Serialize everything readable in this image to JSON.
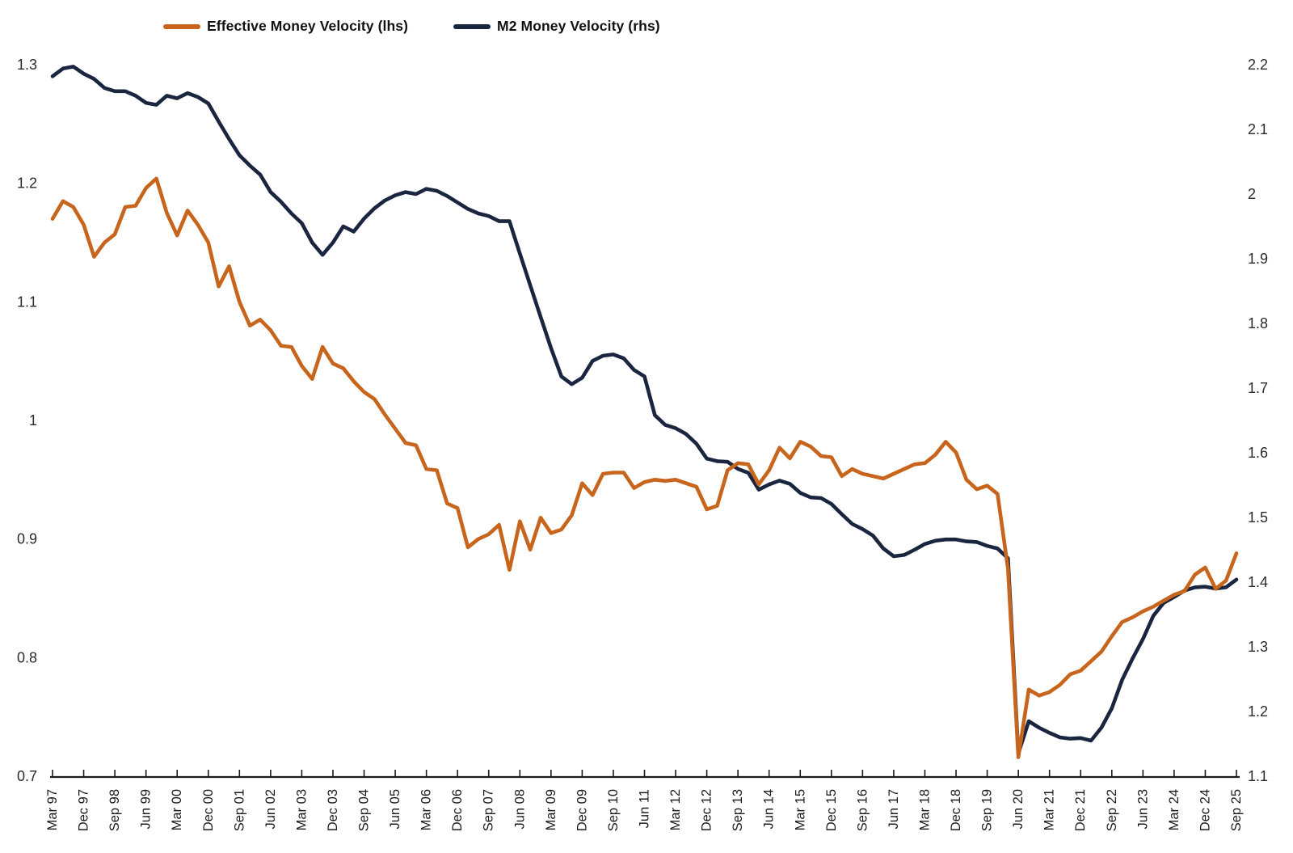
{
  "page": {
    "background": "#ffffff"
  },
  "legend": {
    "items": [
      {
        "label": "Effective Money Velocity (lhs)",
        "color": "#C7651D"
      },
      {
        "label": "M2 Money Velocity (rhs)",
        "color": "#1A2540"
      }
    ]
  },
  "chart_data": {
    "type": "line",
    "title": "",
    "grid": "off",
    "legend_position": "top",
    "frequency": "quarterly",
    "quarters": [
      "Mar 97",
      "Jun 97",
      "Sep 97",
      "Dec 97",
      "Mar 98",
      "Jun 98",
      "Sep 98",
      "Dec 98",
      "Mar 99",
      "Jun 99",
      "Sep 99",
      "Dec 99",
      "Mar 00",
      "Jun 00",
      "Sep 00",
      "Dec 00",
      "Mar 01",
      "Jun 01",
      "Sep 01",
      "Dec 01",
      "Mar 02",
      "Jun 02",
      "Sep 02",
      "Dec 02",
      "Mar 03",
      "Jun 03",
      "Sep 03",
      "Dec 03",
      "Mar 04",
      "Jun 04",
      "Sep 04",
      "Dec 04",
      "Mar 05",
      "Jun 05",
      "Sep 05",
      "Dec 05",
      "Mar 06",
      "Jun 06",
      "Sep 06",
      "Dec 06",
      "Mar 07",
      "Jun 07",
      "Sep 07",
      "Dec 07",
      "Mar 08",
      "Jun 08",
      "Sep 08",
      "Dec 08",
      "Mar 09",
      "Jun 09",
      "Sep 09",
      "Dec 09",
      "Mar 10",
      "Jun 10",
      "Sep 10",
      "Dec 10",
      "Mar 11",
      "Jun 11",
      "Sep 11",
      "Dec 11",
      "Mar 12",
      "Jun 12",
      "Sep 12",
      "Dec 12",
      "Mar 13",
      "Jun 13",
      "Sep 13",
      "Dec 13",
      "Mar 14",
      "Jun 14",
      "Sep 14",
      "Dec 14",
      "Mar 15",
      "Jun 15",
      "Sep 15",
      "Dec 15",
      "Mar 16",
      "Jun 16",
      "Sep 16",
      "Dec 16",
      "Mar 17",
      "Jun 17",
      "Sep 17",
      "Dec 17",
      "Mar 18",
      "Jun 18",
      "Sep 18",
      "Dec 18",
      "Mar 19",
      "Jun 19",
      "Sep 19",
      "Dec 19",
      "Mar 20",
      "Jun 20",
      "Sep 20",
      "Dec 20",
      "Mar 21",
      "Jun 21",
      "Sep 21",
      "Dec 21",
      "Mar 22",
      "Jun 22",
      "Sep 22",
      "Dec 22",
      "Mar 23",
      "Jun 23",
      "Sep 23",
      "Dec 23",
      "Mar 24",
      "Jun 24",
      "Sep 24",
      "Dec 24",
      "Mar 25",
      "Jun 25",
      "Sep 25"
    ],
    "x_tick_step": 3,
    "x_tick_labels": [
      "Mar 97",
      "Dec 97",
      "Sep 98",
      "Jun 99",
      "Mar 00",
      "Dec 00",
      "Sep 01",
      "Jun 02",
      "Mar 03",
      "Dec 03",
      "Sep 04",
      "Jun 05",
      "Mar 06",
      "Dec 06",
      "Sep 07",
      "Jun 08",
      "Mar 09",
      "Dec 09",
      "Sep 10",
      "Jun 11",
      "Mar 12",
      "Dec 12",
      "Sep 13",
      "Jun 14",
      "Mar 15",
      "Dec 15",
      "Sep 16",
      "Jun 17",
      "Mar 18",
      "Dec 18",
      "Sep 19",
      "Jun 20",
      "Mar 21",
      "Dec 21",
      "Sep 22",
      "Jun 23",
      "Mar 24",
      "Dec 24",
      "Sep 25"
    ],
    "left_axis": {
      "min": 0.7,
      "max": 1.3,
      "ticks": [
        1.3,
        1.2,
        1.1,
        1.0,
        0.9,
        0.8,
        0.7
      ],
      "tick_labels": [
        "1.3",
        "1.2",
        "1.1",
        "1",
        "0.9",
        "0.8",
        "0.7"
      ]
    },
    "right_axis": {
      "min": 1.1,
      "max": 2.2,
      "ticks": [
        2.2,
        2.1,
        2.0,
        1.9,
        1.8,
        1.7,
        1.6,
        1.5,
        1.4,
        1.3,
        1.2,
        1.1
      ],
      "tick_labels": [
        "2.2",
        "2.1",
        "2",
        "1.9",
        "1.8",
        "1.7",
        "1.6",
        "1.5",
        "1.4",
        "1.3",
        "1.2",
        "1.1"
      ]
    },
    "series": [
      {
        "name": "Effective Money Velocity (lhs)",
        "axis": "left",
        "color": "#C7651D",
        "values": [
          1.17,
          1.185,
          1.18,
          1.165,
          1.138,
          1.15,
          1.157,
          1.18,
          1.181,
          1.196,
          1.204,
          1.175,
          1.156,
          1.177,
          1.165,
          1.15,
          1.113,
          1.13,
          1.1,
          1.08,
          1.085,
          1.076,
          1.063,
          1.062,
          1.046,
          1.035,
          1.062,
          1.048,
          1.044,
          1.033,
          1.024,
          1.018,
          1.005,
          0.993,
          0.981,
          0.979,
          0.959,
          0.958,
          0.93,
          0.926,
          0.893,
          0.9,
          0.904,
          0.912,
          0.874,
          0.915,
          0.891,
          0.918,
          0.905,
          0.908,
          0.92,
          0.947,
          0.937,
          0.955,
          0.956,
          0.956,
          0.943,
          0.948,
          0.95,
          0.949,
          0.95,
          0.947,
          0.944,
          0.925,
          0.928,
          0.958,
          0.964,
          0.963,
          0.946,
          0.958,
          0.977,
          0.968,
          0.982,
          0.978,
          0.97,
          0.969,
          0.953,
          0.959,
          0.955,
          0.953,
          0.951,
          0.955,
          0.959,
          0.963,
          0.964,
          0.971,
          0.982,
          0.973,
          0.95,
          0.942,
          0.945,
          0.938,
          0.875,
          0.716,
          0.773,
          0.768,
          0.771,
          0.777,
          0.786,
          0.789,
          0.797,
          0.805,
          0.818,
          0.83,
          0.834,
          0.839,
          0.843,
          0.848,
          0.853,
          0.856,
          0.87,
          0.876,
          0.858,
          0.865,
          0.888
        ]
      },
      {
        "name": "M2 Money Velocity (rhs)",
        "axis": "right",
        "color": "#1A2540",
        "values": [
          2.182,
          2.194,
          2.197,
          2.186,
          2.178,
          2.164,
          2.159,
          2.159,
          2.152,
          2.141,
          2.138,
          2.152,
          2.148,
          2.156,
          2.15,
          2.14,
          2.112,
          2.085,
          2.06,
          2.044,
          2.03,
          2.003,
          1.988,
          1.97,
          1.955,
          1.925,
          1.906,
          1.925,
          1.95,
          1.942,
          1.962,
          1.978,
          1.99,
          1.998,
          2.003,
          2.0,
          2.008,
          2.005,
          1.997,
          1.987,
          1.977,
          1.97,
          1.966,
          1.958,
          1.958,
          1.908,
          1.859,
          1.81,
          1.762,
          1.718,
          1.706,
          1.716,
          1.742,
          1.75,
          1.752,
          1.746,
          1.728,
          1.718,
          1.658,
          1.643,
          1.638,
          1.629,
          1.614,
          1.591,
          1.587,
          1.586,
          1.575,
          1.569,
          1.543,
          1.551,
          1.557,
          1.552,
          1.538,
          1.531,
          1.53,
          1.521,
          1.505,
          1.49,
          1.482,
          1.472,
          1.452,
          1.44,
          1.442,
          1.45,
          1.459,
          1.464,
          1.466,
          1.466,
          1.463,
          1.462,
          1.456,
          1.452,
          1.437,
          1.135,
          1.185,
          1.175,
          1.167,
          1.16,
          1.158,
          1.159,
          1.155,
          1.175,
          1.205,
          1.249,
          1.282,
          1.312,
          1.348,
          1.368,
          1.377,
          1.387,
          1.392,
          1.393,
          1.39,
          1.392,
          1.404
        ]
      }
    ]
  }
}
